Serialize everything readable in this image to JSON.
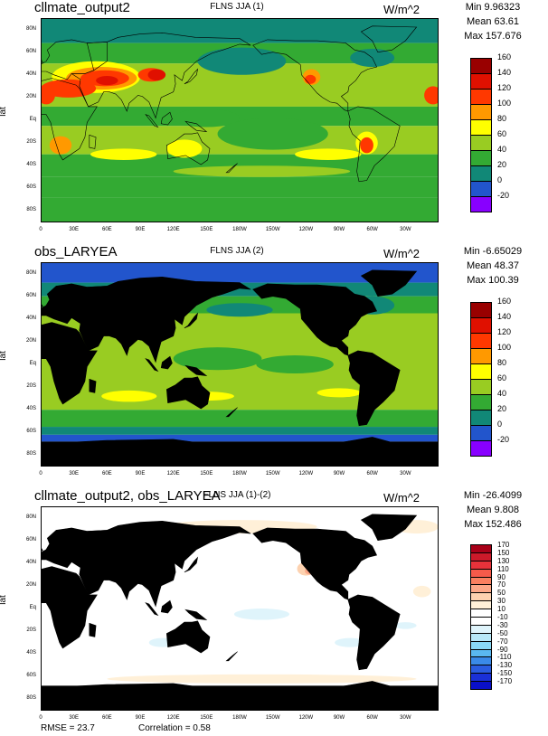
{
  "panels": [
    {
      "title_left": "cllmate_output2",
      "title_center": "FLNS JJA (1)",
      "units": "W/m^2",
      "stats": {
        "min": "Min 9.96323",
        "mean": "Mean 63.61",
        "max": "Max 157.676"
      },
      "colorbar": {
        "labels": [
          "160",
          "140",
          "120",
          "100",
          "80",
          "60",
          "40",
          "20",
          "0",
          "-20"
        ],
        "colors": [
          "#990000",
          "#e01000",
          "#ff3800",
          "#ff9900",
          "#ffff00",
          "#99cc22",
          "#33aa33",
          "#118877",
          "#2255cc",
          "#8800ff"
        ]
      },
      "field": "model"
    },
    {
      "title_left": "obs_LARYEA",
      "title_center": "FLNS JJA (2)",
      "units": "W/m^2",
      "stats": {
        "min": "Min -6.65029",
        "mean": "Mean 48.37",
        "max": "Max 100.39"
      },
      "colorbar": {
        "labels": [
          "160",
          "140",
          "120",
          "100",
          "80",
          "60",
          "40",
          "20",
          "0",
          "-20"
        ],
        "colors": [
          "#990000",
          "#e01000",
          "#ff3800",
          "#ff9900",
          "#ffff00",
          "#99cc22",
          "#33aa33",
          "#118877",
          "#2255cc",
          "#8800ff"
        ]
      },
      "field": "obs"
    },
    {
      "title_left": "cllmate_output2, obs_LARYEA",
      "title_center": "FLNS JJA (1)-(2)",
      "units": "W/m^2",
      "stats": {
        "min": "Min -26.4099",
        "mean": "Mean 9.808",
        "max": "Max 152.486"
      },
      "colorbar": {
        "labels": [
          "170",
          "150",
          "130",
          "110",
          "90",
          "70",
          "50",
          "30",
          "10",
          "-10",
          "-30",
          "-50",
          "-70",
          "-90",
          "-110",
          "-130",
          "-150",
          "-170"
        ],
        "colors": [
          "#a80018",
          "#cc1a2a",
          "#e8323a",
          "#f55a4a",
          "#fa8060",
          "#fca888",
          "#fdd2b0",
          "#fff0d8",
          "#ffffff",
          "#ffffff",
          "#dff4fb",
          "#b8e8f8",
          "#8ad8f5",
          "#5ab8f0",
          "#3a8ae8",
          "#2a5ce0",
          "#1a30d8",
          "#0a10c8"
        ]
      },
      "field": "diff"
    }
  ],
  "ylabel": "lat",
  "lat_ticks": [
    "80N",
    "60N",
    "40N",
    "20N",
    "Eq",
    "20S",
    "40S",
    "60S",
    "80S"
  ],
  "lon_ticks": [
    "0",
    "30E",
    "60E",
    "90E",
    "120E",
    "150E",
    "180W",
    "150W",
    "120W",
    "90W",
    "60W",
    "30W"
  ],
  "footer": {
    "rmse": "RMSE = 23.7",
    "correlation": "Correlation = 0.58"
  },
  "chart_data": [
    {
      "type": "heatmap",
      "title": "FLNS JJA (1)",
      "subtitle": "cllmate_output2",
      "units": "W/m^2",
      "ylabel": "lat",
      "x_ticks": [
        "0",
        "30E",
        "60E",
        "90E",
        "120E",
        "150E",
        "180W",
        "150W",
        "120W",
        "90W",
        "60W",
        "30W"
      ],
      "y_ticks": [
        "80N",
        "60N",
        "40N",
        "20N",
        "Eq",
        "20S",
        "40S",
        "60S",
        "80S"
      ],
      "levels": [
        -20,
        0,
        20,
        40,
        60,
        80,
        100,
        120,
        140,
        160
      ],
      "min": 9.96323,
      "mean": 63.61,
      "max": 157.676
    },
    {
      "type": "heatmap",
      "title": "FLNS JJA (2)",
      "subtitle": "obs_LARYEA",
      "units": "W/m^2",
      "ylabel": "lat",
      "x_ticks": [
        "0",
        "30E",
        "60E",
        "90E",
        "120E",
        "150E",
        "180W",
        "150W",
        "120W",
        "90W",
        "60W",
        "30W"
      ],
      "y_ticks": [
        "80N",
        "60N",
        "40N",
        "20N",
        "Eq",
        "20S",
        "40S",
        "60S",
        "80S"
      ],
      "levels": [
        -20,
        0,
        20,
        40,
        60,
        80,
        100,
        120,
        140,
        160
      ],
      "min": -6.65029,
      "mean": 48.37,
      "max": 100.39
    },
    {
      "type": "heatmap",
      "title": "FLNS JJA (1)-(2)",
      "subtitle": "cllmate_output2, obs_LARYEA",
      "units": "W/m^2",
      "ylabel": "lat",
      "x_ticks": [
        "0",
        "30E",
        "60E",
        "90E",
        "120E",
        "150E",
        "180W",
        "150W",
        "120W",
        "90W",
        "60W",
        "30W"
      ],
      "y_ticks": [
        "80N",
        "60N",
        "40N",
        "20N",
        "Eq",
        "20S",
        "40S",
        "60S",
        "80S"
      ],
      "levels": [
        -170,
        -150,
        -130,
        -110,
        -90,
        -70,
        -50,
        -30,
        -10,
        10,
        30,
        50,
        70,
        90,
        110,
        130,
        150,
        170
      ],
      "min": -26.4099,
      "mean": 9.808,
      "max": 152.486,
      "rmse": 23.7,
      "correlation": 0.58
    }
  ]
}
